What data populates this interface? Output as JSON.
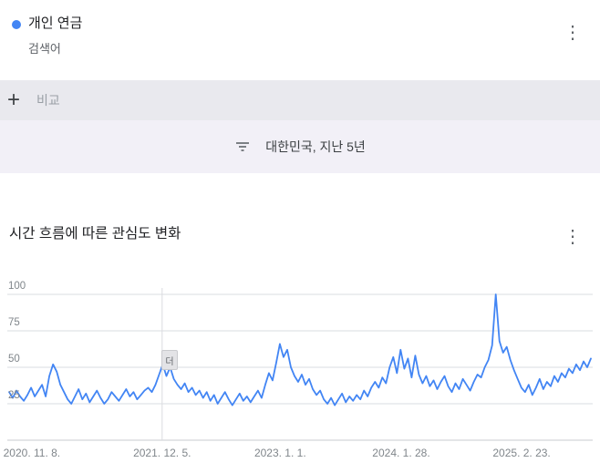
{
  "term_card": {
    "title": "개인 연금",
    "subtitle": "검색어"
  },
  "compare": {
    "placeholder": "비교"
  },
  "filter_bar": {
    "label": "대한민국, 지난 5년"
  },
  "chart_section": {
    "title": "시간 흐름에 따른 관심도 변화"
  },
  "icons": {
    "kebab": "⋮",
    "plus": "+"
  },
  "hover_marker": {
    "label": "더"
  },
  "colors": {
    "accent": "#4285f4",
    "line": "#4285f4",
    "grid": "#dadce0"
  },
  "chart_data": {
    "type": "line",
    "title": "시간 흐름에 따른 관심도 변화",
    "xlabel": "",
    "ylabel": "",
    "ylim": [
      0,
      100
    ],
    "yticks": [
      25,
      50,
      75,
      100
    ],
    "grid": true,
    "legend": "none",
    "date_line": {
      "pos": 0.263
    },
    "xticks": [
      {
        "label": "2020. 11. 8.",
        "pos": 0.039
      },
      {
        "label": "2021. 12. 5.",
        "pos": 0.263
      },
      {
        "label": "2023. 1. 1.",
        "pos": 0.466
      },
      {
        "label": "2024. 1. 28.",
        "pos": 0.674
      },
      {
        "label": "2025. 2. 23.",
        "pos": 0.881
      }
    ],
    "series": [
      {
        "name": "개인 연금",
        "color": "#4285f4",
        "values": [
          33,
          29,
          34,
          30,
          27,
          31,
          36,
          30,
          34,
          38,
          30,
          44,
          52,
          47,
          38,
          33,
          28,
          25,
          30,
          35,
          28,
          32,
          26,
          30,
          34,
          29,
          25,
          28,
          33,
          30,
          27,
          31,
          35,
          30,
          33,
          28,
          31,
          34,
          36,
          33,
          38,
          45,
          52,
          44,
          50,
          42,
          38,
          35,
          39,
          33,
          36,
          31,
          34,
          29,
          33,
          27,
          31,
          25,
          29,
          33,
          28,
          24,
          28,
          32,
          27,
          30,
          26,
          30,
          34,
          29,
          38,
          46,
          41,
          53,
          66,
          57,
          62,
          50,
          44,
          40,
          45,
          38,
          42,
          35,
          31,
          34,
          28,
          25,
          29,
          24,
          28,
          32,
          26,
          30,
          27,
          31,
          28,
          34,
          30,
          36,
          40,
          36,
          43,
          39,
          50,
          57,
          46,
          62,
          49,
          56,
          43,
          58,
          45,
          39,
          44,
          37,
          41,
          35,
          40,
          44,
          37,
          33,
          39,
          35,
          42,
          38,
          34,
          40,
          45,
          43,
          50,
          55,
          65,
          100,
          68,
          60,
          64,
          55,
          48,
          42,
          36,
          33,
          38,
          31,
          36,
          42,
          35,
          40,
          37,
          44,
          40,
          46,
          43,
          49,
          46,
          52,
          48,
          54,
          50,
          56
        ]
      }
    ]
  }
}
